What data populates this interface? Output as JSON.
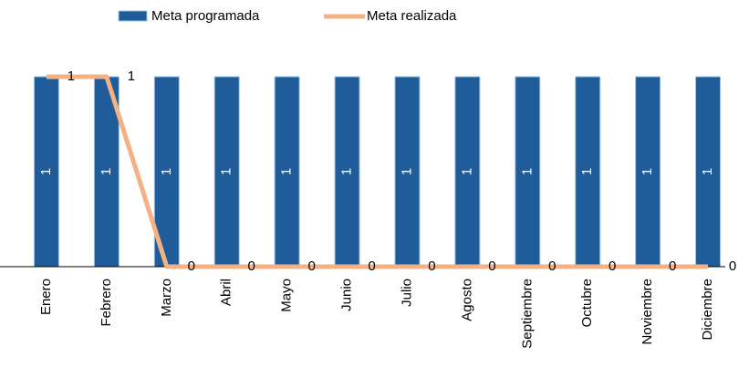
{
  "chart_data": {
    "type": "bar-line",
    "categories": [
      "Enero",
      "Febrero",
      "Marzo",
      "Abril",
      "Mayo",
      "Junio",
      "Julio",
      "Agosto",
      "Septiembre",
      "Octubre",
      "Noviembre",
      "Diciembre"
    ],
    "series": [
      {
        "name": "Meta programada",
        "type": "bar",
        "color": "#1f5c99",
        "values": [
          1,
          1,
          1,
          1,
          1,
          1,
          1,
          1,
          1,
          1,
          1,
          1
        ]
      },
      {
        "name": "Meta realizada",
        "type": "line",
        "color": "#f4b183",
        "values": [
          1,
          1,
          0,
          0,
          0,
          0,
          0,
          0,
          0,
          0,
          0,
          0
        ]
      }
    ],
    "legend": "top"
  }
}
